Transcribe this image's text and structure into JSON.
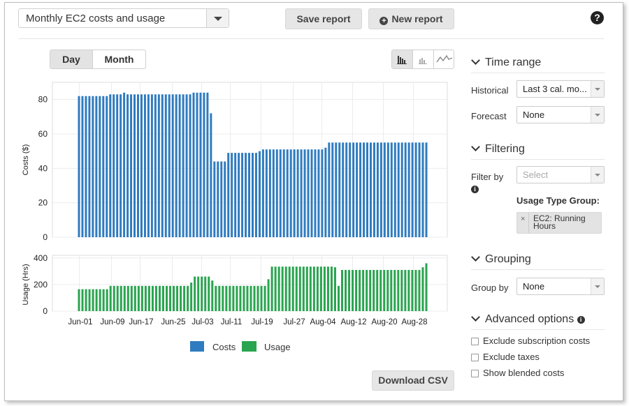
{
  "header": {
    "report_select_value": "Monthly EC2 costs and usage",
    "save_label": "Save report",
    "new_label": "New report",
    "help_glyph": "?"
  },
  "view_toggle": {
    "day": "Day",
    "month": "Month",
    "selected": "Day"
  },
  "chart_type_buttons": [
    "bar-chart-icon",
    "stacked-bar-chart-icon",
    "line-chart-icon"
  ],
  "chart_data": [
    {
      "type": "bar",
      "ylabel": "Costs ($)",
      "ylim": [
        0,
        90
      ],
      "yticks": [
        0,
        20,
        40,
        60,
        80
      ],
      "x_tick_labels": [
        "Jun-01",
        "Jun-09",
        "Jun-17",
        "Jun-25",
        "Jul-03",
        "Jul-11",
        "Jul-19",
        "Jul-27",
        "Aug-04",
        "Aug-12",
        "Aug-20",
        "Aug-28"
      ],
      "series": [
        {
          "name": "Costs",
          "color": "#2e7bbf",
          "values": [
            82,
            82,
            82,
            82,
            82,
            82,
            82,
            82,
            82,
            83,
            83,
            83,
            83,
            84,
            83,
            83,
            83,
            83,
            83,
            83,
            83,
            83,
            83,
            83,
            83,
            83,
            83,
            83,
            83,
            83,
            83,
            83,
            83,
            84,
            84,
            84,
            84,
            84,
            72,
            44,
            44,
            44,
            44,
            49,
            49,
            49,
            49,
            49,
            49,
            49,
            49,
            49,
            50,
            51,
            51,
            51,
            51,
            51,
            51,
            51,
            51,
            51,
            51,
            51,
            51,
            51,
            51,
            51,
            51,
            51,
            51,
            52,
            55,
            55,
            55,
            55,
            55,
            55,
            55,
            55,
            55,
            55,
            55,
            55,
            55,
            55,
            55,
            55,
            55,
            55,
            55,
            55,
            55,
            55,
            55,
            55,
            55,
            55,
            55,
            55,
            55
          ]
        }
      ]
    },
    {
      "type": "bar",
      "ylabel": "Usage (Hrs)",
      "ylim": [
        0,
        420
      ],
      "yticks": [
        0,
        200,
        400
      ],
      "x_tick_labels": [
        "Jun-01",
        "Jun-09",
        "Jun-17",
        "Jun-25",
        "Jul-03",
        "Jul-11",
        "Jul-19",
        "Jul-27",
        "Aug-04",
        "Aug-12",
        "Aug-20",
        "Aug-28"
      ],
      "series": [
        {
          "name": "Usage",
          "color": "#2aa44f",
          "values": [
            165,
            165,
            165,
            165,
            165,
            165,
            165,
            165,
            165,
            190,
            190,
            190,
            190,
            190,
            190,
            190,
            190,
            190,
            190,
            190,
            190,
            190,
            190,
            190,
            190,
            190,
            190,
            190,
            190,
            190,
            190,
            190,
            215,
            260,
            260,
            260,
            260,
            260,
            230,
            190,
            190,
            190,
            190,
            190,
            190,
            190,
            190,
            190,
            190,
            190,
            190,
            190,
            190,
            190,
            240,
            335,
            335,
            335,
            335,
            335,
            335,
            335,
            335,
            335,
            335,
            335,
            335,
            335,
            335,
            335,
            335,
            335,
            335,
            330,
            190,
            310,
            310,
            310,
            310,
            310,
            310,
            310,
            310,
            310,
            310,
            310,
            310,
            310,
            310,
            310,
            310,
            310,
            310,
            310,
            310,
            310,
            310,
            310,
            330,
            360
          ]
        }
      ]
    }
  ],
  "legend": [
    {
      "label": "Costs",
      "color": "#2e7bbf"
    },
    {
      "label": "Usage",
      "color": "#2aa44f"
    }
  ],
  "download_label": "Download CSV",
  "sidebar": {
    "time_range": {
      "title": "Time range",
      "historical_label": "Historical",
      "historical_value": "Last 3 cal. mo...",
      "forecast_label": "Forecast",
      "forecast_value": "None"
    },
    "filtering": {
      "title": "Filtering",
      "filter_by_label": "Filter by",
      "filter_placeholder": "Select",
      "group_title": "Usage Type Group:",
      "chip_label": "EC2: Running Hours",
      "chip_remove": "×"
    },
    "grouping": {
      "title": "Grouping",
      "group_by_label": "Group by",
      "group_by_value": "None"
    },
    "advanced": {
      "title": "Advanced options",
      "options": [
        "Exclude subscription costs",
        "Exclude taxes",
        "Show blended costs"
      ]
    }
  }
}
